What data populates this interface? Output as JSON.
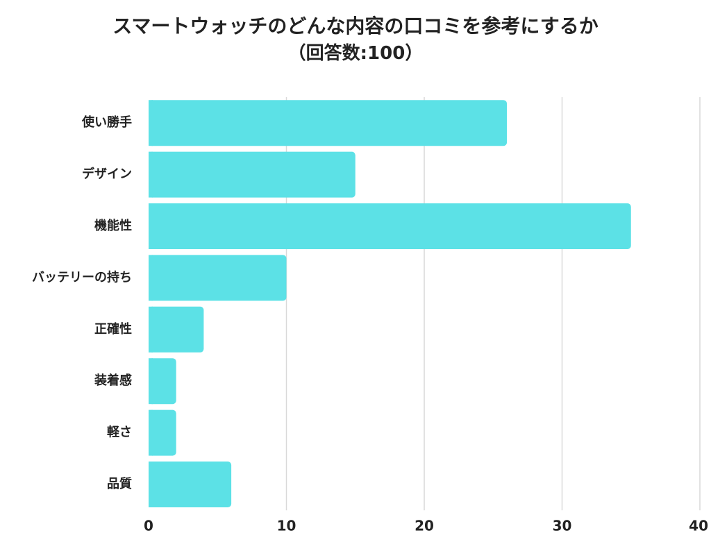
{
  "chart_data": {
    "type": "bar",
    "orientation": "horizontal",
    "title": "スマートウォッチのどんな内容の口コミを参考にするか",
    "subtitle": "（回答数:100）",
    "xlabel": "",
    "ylabel": "",
    "categories": [
      "使い勝手",
      "デザイン",
      "機能性",
      "バッテリーの持ち",
      "正確性",
      "装着感",
      "軽さ",
      "品質"
    ],
    "values": [
      26,
      15,
      35,
      10,
      4,
      2,
      2,
      6
    ],
    "xlim": [
      0,
      40
    ],
    "xticks": [
      0,
      10,
      20,
      30,
      40
    ],
    "grid": true,
    "legend": "none",
    "colors": {
      "bar": "#5ce1e6",
      "grid": "#d9d9d9",
      "text": "#222222"
    }
  }
}
